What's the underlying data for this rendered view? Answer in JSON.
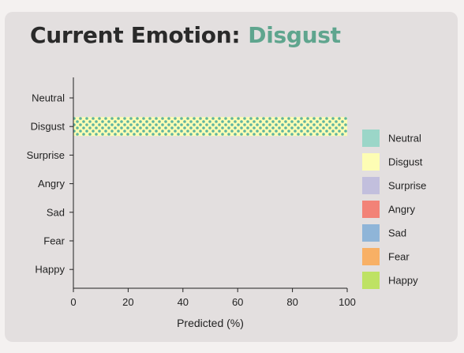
{
  "header": {
    "title_prefix": "Current Emotion:",
    "title_value": "Disgust"
  },
  "chart_data": {
    "type": "bar",
    "orientation": "horizontal",
    "categories": [
      "Neutral",
      "Disgust",
      "Surprise",
      "Angry",
      "Sad",
      "Fear",
      "Happy"
    ],
    "values": [
      0,
      100,
      0,
      0,
      0,
      0,
      0
    ],
    "xlabel": "Predicted (%)",
    "ylabel": "",
    "xlim": [
      0,
      100
    ],
    "xticks": [
      0,
      20,
      40,
      60,
      80,
      100
    ],
    "grid": false,
    "legend": {
      "placement": "right",
      "entries": [
        "Neutral",
        "Disgust",
        "Surprise",
        "Angry",
        "Sad",
        "Fear",
        "Happy"
      ]
    },
    "colors": {
      "Neutral": "#9bd6c8",
      "Disgust": "#fdfdb4",
      "Surprise": "#c2bfdd",
      "Angry": "#f28277",
      "Sad": "#8fb5d8",
      "Fear": "#f8b065",
      "Happy": "#bee264"
    },
    "pattern_dot_color": "#5fb4a0"
  }
}
